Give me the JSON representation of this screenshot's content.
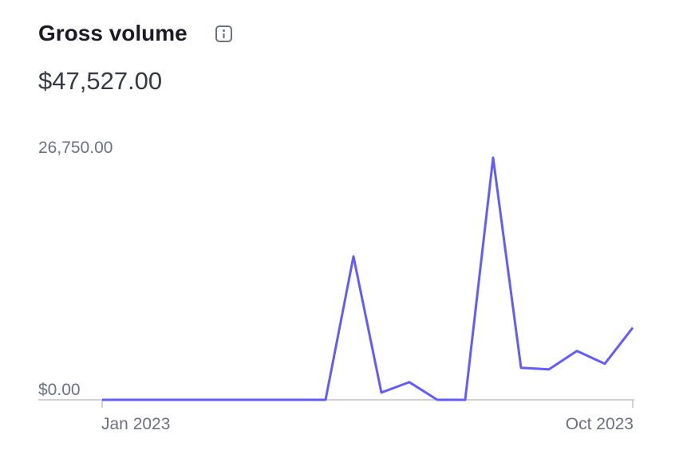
{
  "chart_data": {
    "type": "line",
    "title": "Gross volume",
    "subtitle": "$47,527.00",
    "categories": [
      "Jan 2023",
      null,
      null,
      null,
      null,
      null,
      null,
      null,
      null,
      null,
      null,
      null,
      null,
      null,
      null,
      null,
      null,
      null,
      null,
      "Oct 2023"
    ],
    "values": [
      0,
      0,
      0,
      0,
      0,
      0,
      0,
      0,
      0,
      15850,
      800,
      1950,
      0,
      0,
      26750,
      3540,
      3370,
      5400,
      3990,
      7970
    ],
    "color": "#635bff",
    "ylim": [
      0,
      26750
    ],
    "yticks": [
      {
        "value": 0,
        "label": "$0.00"
      },
      {
        "value": 26750,
        "label": "26,750.00"
      }
    ],
    "grid": false
  }
}
